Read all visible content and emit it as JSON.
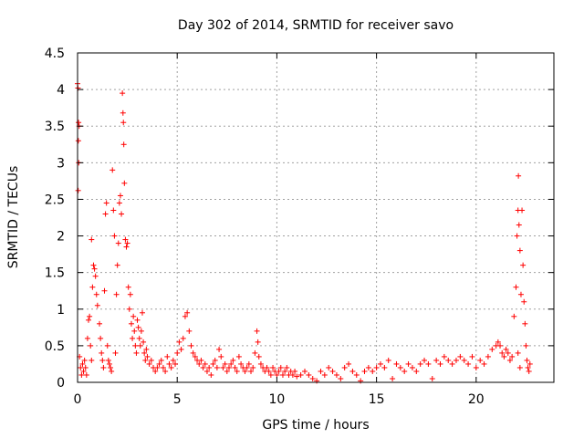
{
  "chart_data": {
    "type": "scatter",
    "title": "Day 302 of 2014, SRMTID for receiver savo",
    "xlabel": "GPS time / hours",
    "ylabel": "SRMTID / TECUs",
    "xlim": [
      0,
      23.9
    ],
    "ylim": [
      0,
      4.5
    ],
    "xticks": [
      0,
      5,
      10,
      15,
      20
    ],
    "xtick_labels": [
      "0",
      "5",
      "10",
      "15",
      "20"
    ],
    "yticks": [
      0,
      0.5,
      1,
      1.5,
      2,
      2.5,
      3,
      3.5,
      4,
      4.5
    ],
    "ytick_labels": [
      "0",
      "0.5",
      "1",
      "1.5",
      "2",
      "2.5",
      "3",
      "3.5",
      "4",
      "4.5"
    ],
    "grid": true,
    "marker": "plus",
    "series": [
      {
        "name": "SRMTID",
        "color": "#ff0000",
        "points": [
          [
            0.0,
            4.08
          ],
          [
            0.02,
            4.02
          ],
          [
            0.05,
            3.55
          ],
          [
            0.08,
            3.5
          ],
          [
            0.04,
            3.3
          ],
          [
            0.06,
            3.0
          ],
          [
            0.03,
            2.62
          ],
          [
            0.1,
            0.35
          ],
          [
            0.15,
            0.2
          ],
          [
            0.2,
            0.1
          ],
          [
            0.25,
            0.25
          ],
          [
            0.3,
            0.15
          ],
          [
            0.35,
            0.3
          ],
          [
            0.4,
            0.2
          ],
          [
            0.45,
            0.1
          ],
          [
            0.5,
            0.6
          ],
          [
            0.55,
            0.85
          ],
          [
            0.6,
            0.9
          ],
          [
            0.65,
            0.5
          ],
          [
            0.7,
            0.3
          ],
          [
            0.75,
            1.3
          ],
          [
            0.8,
            1.6
          ],
          [
            0.85,
            1.55
          ],
          [
            0.9,
            1.45
          ],
          [
            0.95,
            1.2
          ],
          [
            1.0,
            1.05
          ],
          [
            0.7,
            1.95
          ],
          [
            1.1,
            0.8
          ],
          [
            1.15,
            0.6
          ],
          [
            1.2,
            0.4
          ],
          [
            1.25,
            0.3
          ],
          [
            1.3,
            0.2
          ],
          [
            1.35,
            1.25
          ],
          [
            1.4,
            2.3
          ],
          [
            1.45,
            2.45
          ],
          [
            1.5,
            0.5
          ],
          [
            1.55,
            0.3
          ],
          [
            1.6,
            0.25
          ],
          [
            1.65,
            0.2
          ],
          [
            1.7,
            0.15
          ],
          [
            1.75,
            2.9
          ],
          [
            1.8,
            2.35
          ],
          [
            1.85,
            2.0
          ],
          [
            1.9,
            0.4
          ],
          [
            1.95,
            1.2
          ],
          [
            2.0,
            1.6
          ],
          [
            2.05,
            1.9
          ],
          [
            2.1,
            2.45
          ],
          [
            2.15,
            2.55
          ],
          [
            2.2,
            2.3
          ],
          [
            2.25,
            3.95
          ],
          [
            2.28,
            3.68
          ],
          [
            2.3,
            3.55
          ],
          [
            2.32,
            3.25
          ],
          [
            2.35,
            2.72
          ],
          [
            2.4,
            1.95
          ],
          [
            2.45,
            1.85
          ],
          [
            2.5,
            1.9
          ],
          [
            2.55,
            1.3
          ],
          [
            2.6,
            1.0
          ],
          [
            2.65,
            1.2
          ],
          [
            2.7,
            0.8
          ],
          [
            2.75,
            0.6
          ],
          [
            2.8,
            0.9
          ],
          [
            2.85,
            0.7
          ],
          [
            2.9,
            0.5
          ],
          [
            2.95,
            0.4
          ],
          [
            3.0,
            0.85
          ],
          [
            3.05,
            0.75
          ],
          [
            3.1,
            0.6
          ],
          [
            3.15,
            0.5
          ],
          [
            3.2,
            0.7
          ],
          [
            3.25,
            0.95
          ],
          [
            3.3,
            0.55
          ],
          [
            3.35,
            0.4
          ],
          [
            3.4,
            0.3
          ],
          [
            3.45,
            0.45
          ],
          [
            3.5,
            0.35
          ],
          [
            3.6,
            0.25
          ],
          [
            3.7,
            0.3
          ],
          [
            3.8,
            0.2
          ],
          [
            3.9,
            0.15
          ],
          [
            4.0,
            0.2
          ],
          [
            4.1,
            0.25
          ],
          [
            4.2,
            0.3
          ],
          [
            4.3,
            0.2
          ],
          [
            4.4,
            0.15
          ],
          [
            4.5,
            0.35
          ],
          [
            4.6,
            0.25
          ],
          [
            4.7,
            0.2
          ],
          [
            4.8,
            0.3
          ],
          [
            4.9,
            0.25
          ],
          [
            5.0,
            0.4
          ],
          [
            5.1,
            0.55
          ],
          [
            5.2,
            0.45
          ],
          [
            5.3,
            0.6
          ],
          [
            5.4,
            0.9
          ],
          [
            5.5,
            0.95
          ],
          [
            5.6,
            0.7
          ],
          [
            5.7,
            0.5
          ],
          [
            5.8,
            0.4
          ],
          [
            5.9,
            0.35
          ],
          [
            6.0,
            0.3
          ],
          [
            6.1,
            0.25
          ],
          [
            6.2,
            0.3
          ],
          [
            6.3,
            0.2
          ],
          [
            6.4,
            0.25
          ],
          [
            6.5,
            0.15
          ],
          [
            6.6,
            0.2
          ],
          [
            6.7,
            0.1
          ],
          [
            6.8,
            0.25
          ],
          [
            6.9,
            0.3
          ],
          [
            7.0,
            0.2
          ],
          [
            7.1,
            0.45
          ],
          [
            7.2,
            0.35
          ],
          [
            7.3,
            0.2
          ],
          [
            7.4,
            0.25
          ],
          [
            7.5,
            0.15
          ],
          [
            7.6,
            0.2
          ],
          [
            7.7,
            0.25
          ],
          [
            7.8,
            0.3
          ],
          [
            7.9,
            0.2
          ],
          [
            8.0,
            0.15
          ],
          [
            8.1,
            0.35
          ],
          [
            8.2,
            0.25
          ],
          [
            8.3,
            0.2
          ],
          [
            8.4,
            0.15
          ],
          [
            8.5,
            0.2
          ],
          [
            8.6,
            0.25
          ],
          [
            8.7,
            0.15
          ],
          [
            8.8,
            0.2
          ],
          [
            8.9,
            0.4
          ],
          [
            9.0,
            0.7
          ],
          [
            9.05,
            0.55
          ],
          [
            9.1,
            0.35
          ],
          [
            9.2,
            0.25
          ],
          [
            9.3,
            0.2
          ],
          [
            9.4,
            0.15
          ],
          [
            9.5,
            0.2
          ],
          [
            9.6,
            0.15
          ],
          [
            9.7,
            0.1
          ],
          [
            9.8,
            0.2
          ],
          [
            9.9,
            0.15
          ],
          [
            10.0,
            0.1
          ],
          [
            10.1,
            0.15
          ],
          [
            10.2,
            0.2
          ],
          [
            10.3,
            0.1
          ],
          [
            10.4,
            0.15
          ],
          [
            10.5,
            0.2
          ],
          [
            10.6,
            0.1
          ],
          [
            10.7,
            0.15
          ],
          [
            10.8,
            0.1
          ],
          [
            10.9,
            0.15
          ],
          [
            11.0,
            0.08
          ],
          [
            11.2,
            0.1
          ],
          [
            11.4,
            0.15
          ],
          [
            11.6,
            0.1
          ],
          [
            11.8,
            0.05
          ],
          [
            12.0,
            0.02
          ],
          [
            12.2,
            0.15
          ],
          [
            12.4,
            0.1
          ],
          [
            12.6,
            0.2
          ],
          [
            12.8,
            0.15
          ],
          [
            13.0,
            0.1
          ],
          [
            13.2,
            0.05
          ],
          [
            13.4,
            0.2
          ],
          [
            13.6,
            0.25
          ],
          [
            13.8,
            0.15
          ],
          [
            14.0,
            0.1
          ],
          [
            14.2,
            0.02
          ],
          [
            14.4,
            0.15
          ],
          [
            14.6,
            0.2
          ],
          [
            14.8,
            0.15
          ],
          [
            15.0,
            0.2
          ],
          [
            15.2,
            0.25
          ],
          [
            15.4,
            0.2
          ],
          [
            15.6,
            0.3
          ],
          [
            15.8,
            0.05
          ],
          [
            16.0,
            0.25
          ],
          [
            16.2,
            0.2
          ],
          [
            16.4,
            0.15
          ],
          [
            16.6,
            0.25
          ],
          [
            16.8,
            0.2
          ],
          [
            17.0,
            0.15
          ],
          [
            17.2,
            0.25
          ],
          [
            17.4,
            0.3
          ],
          [
            17.6,
            0.25
          ],
          [
            17.8,
            0.05
          ],
          [
            18.0,
            0.3
          ],
          [
            18.2,
            0.25
          ],
          [
            18.4,
            0.35
          ],
          [
            18.6,
            0.3
          ],
          [
            18.8,
            0.25
          ],
          [
            19.0,
            0.3
          ],
          [
            19.2,
            0.35
          ],
          [
            19.4,
            0.3
          ],
          [
            19.6,
            0.25
          ],
          [
            19.8,
            0.35
          ],
          [
            20.0,
            0.2
          ],
          [
            20.2,
            0.3
          ],
          [
            20.4,
            0.25
          ],
          [
            20.6,
            0.35
          ],
          [
            20.8,
            0.45
          ],
          [
            21.0,
            0.5
          ],
          [
            21.1,
            0.55
          ],
          [
            21.2,
            0.5
          ],
          [
            21.3,
            0.4
          ],
          [
            21.4,
            0.35
          ],
          [
            21.5,
            0.45
          ],
          [
            21.6,
            0.4
          ],
          [
            21.7,
            0.3
          ],
          [
            21.8,
            0.35
          ],
          [
            21.9,
            0.9
          ],
          [
            22.0,
            1.3
          ],
          [
            22.05,
            2.0
          ],
          [
            22.1,
            2.35
          ],
          [
            22.12,
            2.82
          ],
          [
            22.15,
            2.15
          ],
          [
            22.2,
            1.8
          ],
          [
            22.25,
            1.2
          ],
          [
            22.3,
            2.35
          ],
          [
            22.35,
            1.6
          ],
          [
            22.4,
            1.1
          ],
          [
            22.45,
            0.8
          ],
          [
            22.5,
            0.5
          ],
          [
            22.55,
            0.3
          ],
          [
            22.6,
            0.2
          ],
          [
            22.65,
            0.15
          ],
          [
            22.7,
            0.25
          ],
          [
            22.1,
            0.4
          ],
          [
            22.2,
            0.2
          ]
        ]
      }
    ]
  }
}
